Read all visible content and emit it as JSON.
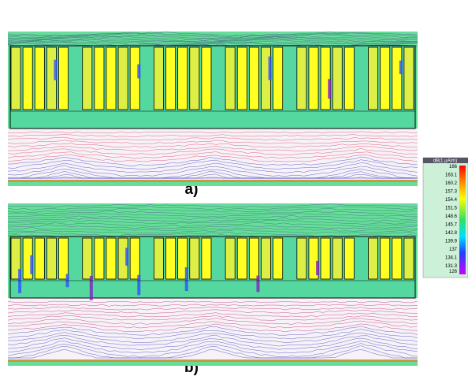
{
  "panels": [
    {
      "label": "a)"
    },
    {
      "label": "b)"
    }
  ],
  "colorbar": {
    "title": "dB(1 µA/m)",
    "ticks": [
      "166",
      "163.1",
      "160.2",
      "157.3",
      "154.4",
      "151.5",
      "148.6",
      "145.7",
      "142.8",
      "139.9",
      "137",
      "134.1",
      "131.3",
      "126"
    ]
  }
}
